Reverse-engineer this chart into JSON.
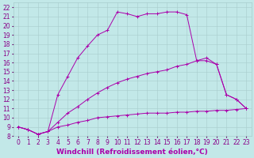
{
  "xlabel": "Windchill (Refroidissement éolien,°C)",
  "bg_color": "#c2e8e8",
  "grid_color": "#a8cccc",
  "line_color": "#aa00aa",
  "xlim": [
    -0.5,
    23.5
  ],
  "ylim": [
    8,
    22.5
  ],
  "xticks": [
    0,
    1,
    2,
    3,
    4,
    5,
    6,
    7,
    8,
    9,
    10,
    11,
    12,
    13,
    14,
    15,
    16,
    17,
    18,
    19,
    20,
    21,
    22,
    23
  ],
  "yticks": [
    8,
    9,
    10,
    11,
    12,
    13,
    14,
    15,
    16,
    17,
    18,
    19,
    20,
    21,
    22
  ],
  "line1_x": [
    0,
    1,
    2,
    3,
    4,
    5,
    6,
    7,
    8,
    9,
    10,
    11,
    12,
    13,
    14,
    15,
    16,
    17,
    18,
    19,
    20,
    21,
    22,
    23
  ],
  "line1_y": [
    9.0,
    8.7,
    8.2,
    8.5,
    9.0,
    9.2,
    9.5,
    9.7,
    10.0,
    10.1,
    10.2,
    10.3,
    10.4,
    10.5,
    10.5,
    10.5,
    10.6,
    10.6,
    10.7,
    10.7,
    10.8,
    10.8,
    10.9,
    11.0
  ],
  "line2_x": [
    0,
    1,
    2,
    3,
    4,
    5,
    6,
    7,
    8,
    9,
    10,
    11,
    12,
    13,
    14,
    15,
    16,
    17,
    18,
    19,
    20,
    21,
    22,
    23
  ],
  "line2_y": [
    9.0,
    8.7,
    8.2,
    8.5,
    9.5,
    10.5,
    11.2,
    12.0,
    12.7,
    13.3,
    13.8,
    14.2,
    14.5,
    14.8,
    15.0,
    15.2,
    15.6,
    15.8,
    16.2,
    16.2,
    15.8,
    12.5,
    12.0,
    11.0
  ],
  "line3_x": [
    0,
    1,
    2,
    3,
    4,
    5,
    6,
    7,
    8,
    9,
    10,
    11,
    12,
    13,
    14,
    15,
    16,
    17,
    18,
    19,
    20,
    21,
    22,
    23
  ],
  "line3_y": [
    9.0,
    8.7,
    8.2,
    8.5,
    12.5,
    14.5,
    16.5,
    17.8,
    19.0,
    19.5,
    21.5,
    21.3,
    21.0,
    21.3,
    21.3,
    21.5,
    21.5,
    21.2,
    16.2,
    16.5,
    15.8,
    12.5,
    12.0,
    11.0
  ],
  "xlabel_fontsize": 6.5,
  "tick_fontsize": 5.5,
  "marker": "+",
  "marker_size": 3.5,
  "linewidth": 0.7
}
